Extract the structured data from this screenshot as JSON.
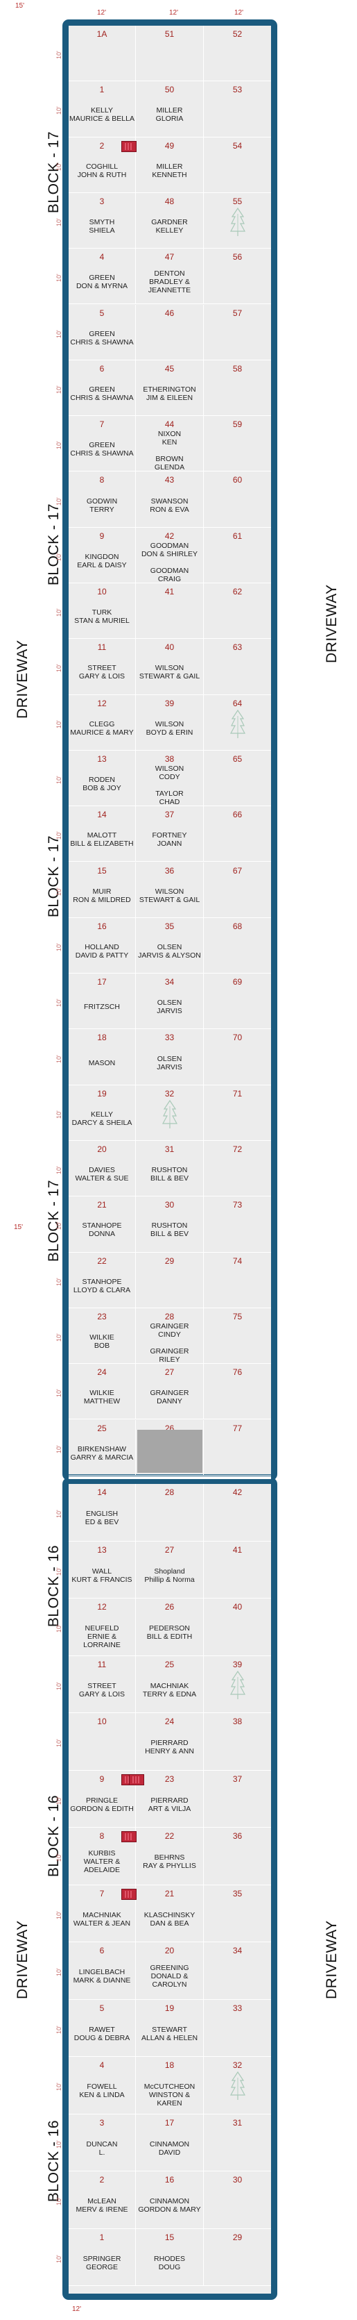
{
  "dimensions": {
    "top_left": "15'",
    "top_c1": "12'",
    "top_c2": "12'",
    "top_c3": "12'",
    "mid_left": "15'",
    "bottom": "12'",
    "rows_upper": [
      "10'",
      "10'",
      "10'",
      "10'",
      "10'",
      "10'",
      "10'",
      "10'",
      "10'",
      "10'",
      "10'",
      "10'",
      "10'",
      "10'",
      "10'",
      "10'",
      "10'",
      "10'",
      "10'",
      "10'",
      "10'",
      "10'",
      "10'",
      "10'",
      "10'",
      "10'",
      "10'"
    ],
    "rows_lower": [
      "10'",
      "10'",
      "10'",
      "10'",
      "10'",
      "10'",
      "10'",
      "10'",
      "10'",
      "10'",
      "10'",
      "10'",
      "10'",
      "10'",
      "10'",
      "10'",
      "10'"
    ]
  },
  "labels": {
    "driveway": "DRIVEWAY",
    "block17": "BLOCK - 17",
    "block16": "BLOCK - 16"
  },
  "block17": {
    "col1": [
      {
        "num": "1A",
        "names": []
      },
      {
        "num": "1",
        "names": [
          "KELLY",
          "MAURICE & BELLA"
        ]
      },
      {
        "num": "2",
        "names": [
          "COGHILL",
          "JOHN & RUTH"
        ],
        "flag": true
      },
      {
        "num": "3",
        "names": [
          "SMYTH",
          "SHIELA"
        ]
      },
      {
        "num": "4",
        "names": [
          "GREEN",
          "DON & MYRNA"
        ]
      },
      {
        "num": "5",
        "names": [
          "GREEN",
          "CHRIS & SHAWNA"
        ]
      },
      {
        "num": "6",
        "names": [
          "GREEN",
          "CHRIS & SHAWNA"
        ]
      },
      {
        "num": "7",
        "names": [
          "GREEN",
          "CHRIS & SHAWNA"
        ]
      },
      {
        "num": "8",
        "names": [
          "GODWIN",
          "TERRY"
        ]
      },
      {
        "num": "9",
        "names": [
          "KINGDON",
          "EARL & DAISY"
        ]
      },
      {
        "num": "10",
        "names": [
          "TURK",
          "STAN & MURIEL"
        ]
      },
      {
        "num": "11",
        "names": [
          "STREET",
          "GARY & LOIS"
        ]
      },
      {
        "num": "12",
        "names": [
          "CLEGG",
          "MAURICE & MARY"
        ]
      },
      {
        "num": "13",
        "names": [
          "RODEN",
          "BOB & JOY"
        ]
      },
      {
        "num": "14",
        "names": [
          "MALOTT",
          "BILL & ELIZABETH"
        ]
      },
      {
        "num": "15",
        "names": [
          "MUIR",
          "RON & MILDRED"
        ]
      },
      {
        "num": "16",
        "names": [
          "HOLLAND",
          "DAVID & PATTY"
        ]
      },
      {
        "num": "17",
        "names": [
          "FRITZSCH"
        ]
      },
      {
        "num": "18",
        "names": [
          "MASON"
        ]
      },
      {
        "num": "19",
        "names": [
          "KELLY",
          "DARCY & SHEILA"
        ]
      },
      {
        "num": "20",
        "names": [
          "DAVIES",
          "WALTER & SUE"
        ]
      },
      {
        "num": "21",
        "names": [
          "STANHOPE",
          "DONNA"
        ]
      },
      {
        "num": "22",
        "names": [
          "STANHOPE",
          "LLOYD & CLARA"
        ]
      },
      {
        "num": "23",
        "names": [
          "WILKIE",
          "BOB"
        ]
      },
      {
        "num": "24",
        "names": [
          "WILKIE",
          "MATTHEW"
        ]
      },
      {
        "num": "25",
        "names": [
          "BIRKENSHAW",
          "GARRY & MARCIA"
        ]
      }
    ],
    "col2": [
      {
        "num": "51",
        "names": []
      },
      {
        "num": "50",
        "names": [
          "MILLER",
          "GLORIA"
        ]
      },
      {
        "num": "49",
        "names": [
          "MILLER",
          "KENNETH"
        ]
      },
      {
        "num": "48",
        "names": [
          "GARDNER",
          "KELLEY"
        ]
      },
      {
        "num": "47",
        "names": [
          "DENTON",
          "BRADLEY &",
          "JEANNETTE"
        ]
      },
      {
        "num": "46",
        "names": []
      },
      {
        "num": "45",
        "names": [
          "ETHERINGTON",
          "JIM & EILEEN"
        ]
      },
      {
        "num": "44",
        "names": [
          "NIXON",
          "KEN",
          "",
          "BROWN",
          "GLENDA"
        ]
      },
      {
        "num": "43",
        "names": [
          "SWANSON",
          "RON & EVA"
        ]
      },
      {
        "num": "42",
        "names": [
          "GOODMAN",
          "DON & SHIRLEY",
          "",
          "GOODMAN",
          "CRAIG"
        ]
      },
      {
        "num": "41",
        "names": []
      },
      {
        "num": "40",
        "names": [
          "WILSON",
          "STEWART & GAIL"
        ]
      },
      {
        "num": "39",
        "names": [
          "WILSON",
          "BOYD & ERIN"
        ]
      },
      {
        "num": "38",
        "names": [
          "WILSON",
          "CODY",
          "",
          "TAYLOR",
          "CHAD"
        ]
      },
      {
        "num": "37",
        "names": [
          "FORTNEY",
          "JOANN"
        ]
      },
      {
        "num": "36",
        "names": [
          "WILSON",
          "STEWART & GAIL"
        ]
      },
      {
        "num": "35",
        "names": [
          "OLSEN",
          "JARVIS & ALYSON"
        ]
      },
      {
        "num": "34",
        "names": [
          "OLSEN",
          "JARVIS"
        ]
      },
      {
        "num": "33",
        "names": [
          "OLSEN",
          "JARVIS"
        ]
      },
      {
        "num": "32",
        "names": []
      },
      {
        "num": "31",
        "names": [
          "RUSHTON",
          "BILL & BEV"
        ]
      },
      {
        "num": "30",
        "names": [
          "RUSHTON",
          "BILL & BEV"
        ]
      },
      {
        "num": "29",
        "names": []
      },
      {
        "num": "28",
        "names": [
          "GRAINGER",
          "CINDY",
          "",
          "GRAINGER",
          "RILEY"
        ]
      },
      {
        "num": "27",
        "names": [
          "GRAINGER",
          "DANNY"
        ]
      },
      {
        "num": "26",
        "names": []
      }
    ],
    "col3": [
      "52",
      "53",
      "54",
      "55",
      "56",
      "57",
      "58",
      "59",
      "60",
      "61",
      "62",
      "63",
      "64",
      "65",
      "66",
      "67",
      "68",
      "69",
      "70",
      "71",
      "72",
      "73",
      "74",
      "75",
      "76",
      "77"
    ]
  },
  "block16": {
    "col1": [
      {
        "num": "14",
        "names": [
          "ENGLISH",
          "ED & BEV"
        ]
      },
      {
        "num": "13",
        "names": [
          "WALL",
          "KURT & FRANCIS"
        ]
      },
      {
        "num": "12",
        "names": [
          "NEUFELD",
          "ERNIE & LORRAINE"
        ]
      },
      {
        "num": "11",
        "names": [
          "STREET",
          "GARY & LOIS"
        ]
      },
      {
        "num": "10",
        "names": []
      },
      {
        "num": "9",
        "names": [
          "PRINGLE",
          "GORDON & EDITH"
        ],
        "flag": true
      },
      {
        "num": "8",
        "names": [
          "KURBIS",
          "WALTER &",
          "ADELAIDE"
        ],
        "flag": true
      },
      {
        "num": "7",
        "names": [
          "MACHNIAK",
          "WALTER & JEAN"
        ],
        "flag": true
      },
      {
        "num": "6",
        "names": [
          "LINGELBACH",
          "MARK & DIANNE"
        ]
      },
      {
        "num": "5",
        "names": [
          "RAWET",
          "DOUG & DEBRA"
        ]
      },
      {
        "num": "4",
        "names": [
          "FOWELL",
          "KEN & LINDA"
        ]
      },
      {
        "num": "3",
        "names": [
          "DUNCAN",
          "L."
        ]
      },
      {
        "num": "2",
        "names": [
          "McLEAN",
          "MERV & IRENE"
        ]
      },
      {
        "num": "1",
        "names": [
          "SPRINGER",
          "GEORGE"
        ]
      }
    ],
    "col2": [
      {
        "num": "28",
        "names": []
      },
      {
        "num": "27",
        "names": [
          "Shopland",
          "Phillip & Norma"
        ]
      },
      {
        "num": "26",
        "names": [
          "PEDERSON",
          "BILL & EDITH"
        ]
      },
      {
        "num": "25",
        "names": [
          "MACHNIAK",
          "TERRY & EDNA"
        ]
      },
      {
        "num": "24",
        "names": [
          "PIERRARD",
          "HENRY & ANN"
        ]
      },
      {
        "num": "23",
        "names": [
          "PIERRARD",
          "ART & VILJA"
        ],
        "flag": true
      },
      {
        "num": "22",
        "names": [
          "BEHRNS",
          "RAY & PHYLLIS"
        ]
      },
      {
        "num": "21",
        "names": [
          "KLASCHINSKY",
          "DAN & BEA"
        ]
      },
      {
        "num": "20",
        "names": [
          "GREENING",
          "DONALD &",
          "CAROLYN"
        ]
      },
      {
        "num": "19",
        "names": [
          "STEWART",
          "ALLAN & HELEN"
        ]
      },
      {
        "num": "18",
        "names": [
          "McCUTCHEON",
          "WINSTON & KAREN"
        ]
      },
      {
        "num": "17",
        "names": [
          "CINNAMON",
          "DAVID"
        ]
      },
      {
        "num": "16",
        "names": [
          "CINNAMON",
          "GORDON & MARY"
        ]
      },
      {
        "num": "15",
        "names": [
          "RHODES",
          "DOUG"
        ]
      }
    ],
    "col3": [
      "42",
      "41",
      "40",
      "39",
      "38",
      "37",
      "36",
      "35",
      "34",
      "33",
      "32",
      "31",
      "30",
      "29"
    ]
  },
  "icons": {
    "tree": "tree-icon",
    "flag": "flag-icon"
  }
}
